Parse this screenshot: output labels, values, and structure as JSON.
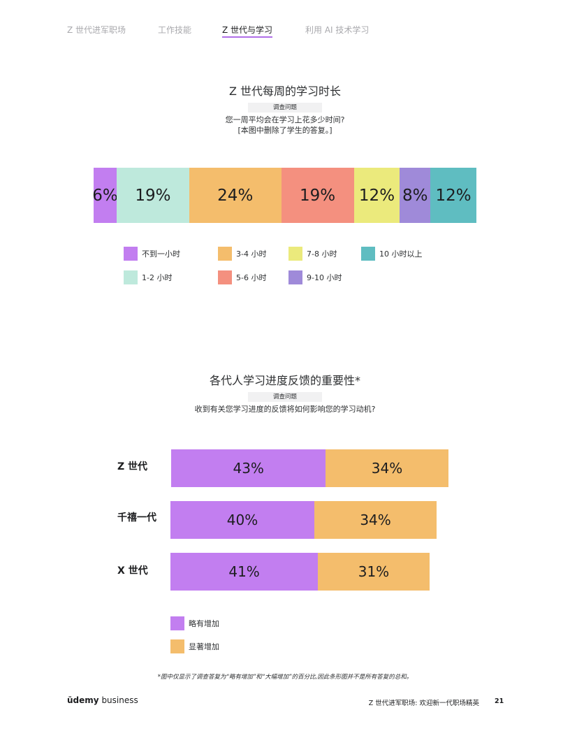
{
  "nav": {
    "items": [
      {
        "label": "Z 世代进军职场",
        "active": false
      },
      {
        "label": "工作技能",
        "active": false
      },
      {
        "label": "Z 世代与学习",
        "active": true
      },
      {
        "label": "利用 AI 技术学习",
        "active": false
      }
    ]
  },
  "chart1": {
    "title": "Z 世代每周的学习时长",
    "tag": "调查问题",
    "question_line1": "您一周平均会在学习上花多少时间?",
    "question_line2": "[本图中删除了学生的答复。]",
    "colors": {
      "under1": "#c27ef0",
      "h1_2": "#bee9dc",
      "h3_4": "#f4bd6c",
      "h5_6": "#f4907f",
      "h7_8": "#ebea7c",
      "h9_10": "#9f8ad9",
      "h10plus": "#5fbdc1"
    },
    "chart_data": {
      "type": "bar",
      "stacked": true,
      "orientation": "horizontal",
      "series": [
        {
          "name": "不到一小时",
          "value": 6,
          "label": "6%"
        },
        {
          "name": "1-2 小时",
          "value": 19,
          "label": "19%"
        },
        {
          "name": "3-4 小时",
          "value": 24,
          "label": "24%"
        },
        {
          "name": "5-6 小时",
          "value": 19,
          "label": "19%"
        },
        {
          "name": "7-8 小时",
          "value": 12,
          "label": "12%"
        },
        {
          "name": "9-10 小时",
          "value": 8,
          "label": "8%"
        },
        {
          "name": "10 小时以上",
          "value": 12,
          "label": "12%"
        }
      ]
    },
    "legend": [
      {
        "label": "不到一小时"
      },
      {
        "label": "3-4 小时"
      },
      {
        "label": "7-8 小时"
      },
      {
        "label": "10 小时以上"
      },
      {
        "label": "1-2 小时"
      },
      {
        "label": "5-6 小时"
      },
      {
        "label": "9-10 小时"
      }
    ]
  },
  "chart2": {
    "title": "各代人学习进度反馈的重要性*",
    "tag": "调查问题",
    "question": "收到有关您学习进度的反馈将如何影响您的学习动机?",
    "colors": {
      "slight": "#c27ef0",
      "significant": "#f4bd6c"
    },
    "chart_data": {
      "type": "bar",
      "stacked": true,
      "orientation": "horizontal",
      "categories": [
        "Z 世代",
        "千禧一代",
        "X 世代"
      ],
      "series": [
        {
          "name": "略有增加",
          "values": [
            43,
            40,
            41
          ],
          "labels": [
            "43%",
            "40%",
            "41%"
          ]
        },
        {
          "name": "显著增加",
          "values": [
            34,
            34,
            31
          ],
          "labels": [
            "34%",
            "34%",
            "31%"
          ]
        }
      ]
    },
    "legend": [
      {
        "label": "略有增加"
      },
      {
        "label": "显著增加"
      }
    ],
    "footnote": "*图中仅显示了调查答复为“略有增加”和“大幅增加”的百分比,因此条形图并不是所有答复的总和。"
  },
  "footer": {
    "brand_prefix": "ūdemy",
    "brand_suffix": "business",
    "title": "Z 世代进军职场: 欢迎新一代职场精英",
    "page": "21"
  }
}
